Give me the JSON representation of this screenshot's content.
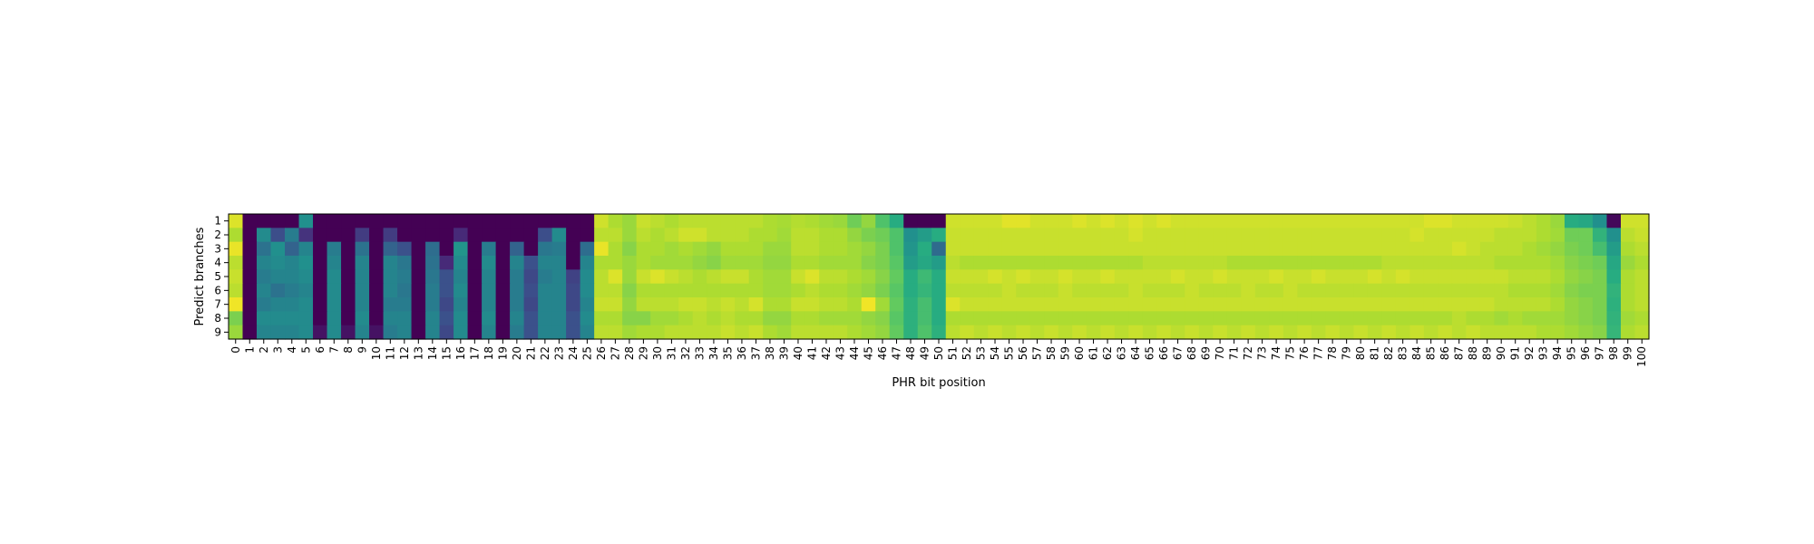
{
  "chart_data": {
    "type": "heatmap",
    "title": "",
    "xlabel": "PHR bit position",
    "ylabel": "Predict branches",
    "x_ticks": [
      0,
      1,
      2,
      3,
      4,
      5,
      6,
      7,
      8,
      9,
      10,
      11,
      12,
      13,
      14,
      15,
      16,
      17,
      18,
      19,
      20,
      21,
      22,
      23,
      24,
      25,
      26,
      27,
      28,
      29,
      30,
      31,
      32,
      33,
      34,
      35,
      36,
      37,
      38,
      39,
      40,
      41,
      42,
      43,
      44,
      45,
      46,
      47,
      48,
      49,
      50,
      51,
      52,
      53,
      54,
      55,
      56,
      57,
      58,
      59,
      60,
      61,
      62,
      63,
      64,
      65,
      66,
      67,
      68,
      69,
      70,
      71,
      72,
      73,
      74,
      75,
      76,
      77,
      78,
      79,
      80,
      81,
      82,
      83,
      84,
      85,
      86,
      87,
      88,
      89,
      90,
      91,
      92,
      93,
      94,
      95,
      96,
      97,
      98,
      99,
      100
    ],
    "y_ticks": [
      1,
      2,
      3,
      4,
      5,
      6,
      7,
      8,
      9
    ],
    "value_range": [
      0,
      1
    ],
    "colormap": "viridis",
    "grid": false,
    "rows": [
      [
        0.95,
        0.0,
        0.0,
        0.0,
        0.0,
        0.5,
        0.0,
        0.0,
        0.0,
        0.0,
        0.0,
        0.0,
        0.0,
        0.0,
        0.0,
        0.0,
        0.0,
        0.0,
        0.0,
        0.0,
        0.0,
        0.0,
        0.0,
        0.0,
        0.0,
        0.0,
        0.93,
        0.88,
        0.85,
        0.92,
        0.9,
        0.88,
        0.9,
        0.9,
        0.9,
        0.9,
        0.9,
        0.9,
        0.88,
        0.87,
        0.89,
        0.88,
        0.86,
        0.85,
        0.78,
        0.84,
        0.72,
        0.62,
        0.0,
        0.0,
        0.0,
        0.93,
        0.93,
        0.93,
        0.93,
        0.96,
        0.96,
        0.93,
        0.93,
        0.93,
        0.95,
        0.93,
        0.95,
        0.93,
        0.95,
        0.93,
        0.95,
        0.93,
        0.93,
        0.93,
        0.93,
        0.93,
        0.93,
        0.93,
        0.93,
        0.93,
        0.93,
        0.93,
        0.93,
        0.93,
        0.93,
        0.93,
        0.93,
        0.93,
        0.93,
        0.95,
        0.95,
        0.93,
        0.93,
        0.93,
        0.93,
        0.92,
        0.9,
        0.88,
        0.85,
        0.62,
        0.6,
        0.5,
        0.02,
        0.93,
        0.93
      ],
      [
        0.88,
        0.0,
        0.48,
        0.24,
        0.42,
        0.15,
        0.0,
        0.0,
        0.0,
        0.18,
        0.0,
        0.18,
        0.0,
        0.0,
        0.0,
        0.0,
        0.12,
        0.0,
        0.0,
        0.0,
        0.0,
        0.0,
        0.24,
        0.48,
        0.0,
        0.0,
        0.9,
        0.9,
        0.85,
        0.9,
        0.88,
        0.9,
        0.93,
        0.93,
        0.9,
        0.9,
        0.9,
        0.88,
        0.88,
        0.86,
        0.9,
        0.9,
        0.88,
        0.88,
        0.84,
        0.8,
        0.78,
        0.72,
        0.5,
        0.55,
        0.62,
        0.92,
        0.92,
        0.92,
        0.92,
        0.92,
        0.92,
        0.92,
        0.92,
        0.92,
        0.92,
        0.92,
        0.92,
        0.92,
        0.94,
        0.92,
        0.92,
        0.92,
        0.92,
        0.92,
        0.92,
        0.92,
        0.92,
        0.92,
        0.92,
        0.92,
        0.92,
        0.92,
        0.92,
        0.92,
        0.92,
        0.92,
        0.92,
        0.92,
        0.94,
        0.92,
        0.92,
        0.92,
        0.92,
        0.92,
        0.9,
        0.9,
        0.9,
        0.88,
        0.86,
        0.78,
        0.78,
        0.65,
        0.5,
        0.9,
        0.92
      ],
      [
        0.97,
        0.0,
        0.38,
        0.5,
        0.32,
        0.45,
        0.0,
        0.42,
        0.0,
        0.38,
        0.0,
        0.32,
        0.25,
        0.0,
        0.36,
        0.0,
        0.52,
        0.0,
        0.42,
        0.0,
        0.32,
        0.0,
        0.4,
        0.42,
        0.0,
        0.36,
        0.97,
        0.88,
        0.82,
        0.88,
        0.88,
        0.86,
        0.88,
        0.86,
        0.84,
        0.88,
        0.88,
        0.88,
        0.85,
        0.85,
        0.9,
        0.9,
        0.88,
        0.88,
        0.86,
        0.84,
        0.8,
        0.72,
        0.52,
        0.62,
        0.35,
        0.92,
        0.92,
        0.92,
        0.92,
        0.92,
        0.92,
        0.92,
        0.92,
        0.92,
        0.92,
        0.92,
        0.92,
        0.92,
        0.92,
        0.92,
        0.92,
        0.92,
        0.92,
        0.92,
        0.92,
        0.92,
        0.92,
        0.92,
        0.92,
        0.92,
        0.92,
        0.92,
        0.92,
        0.92,
        0.92,
        0.92,
        0.92,
        0.92,
        0.92,
        0.92,
        0.92,
        0.94,
        0.92,
        0.9,
        0.9,
        0.9,
        0.88,
        0.86,
        0.84,
        0.8,
        0.78,
        0.7,
        0.55,
        0.88,
        0.9
      ],
      [
        0.9,
        0.0,
        0.45,
        0.48,
        0.45,
        0.5,
        0.0,
        0.45,
        0.0,
        0.45,
        0.0,
        0.45,
        0.4,
        0.0,
        0.38,
        0.12,
        0.48,
        0.0,
        0.48,
        0.0,
        0.45,
        0.25,
        0.45,
        0.45,
        0.0,
        0.45,
        0.88,
        0.88,
        0.85,
        0.88,
        0.86,
        0.86,
        0.86,
        0.84,
        0.82,
        0.86,
        0.86,
        0.86,
        0.84,
        0.84,
        0.88,
        0.88,
        0.86,
        0.86,
        0.86,
        0.82,
        0.8,
        0.74,
        0.55,
        0.6,
        0.55,
        0.9,
        0.88,
        0.88,
        0.88,
        0.88,
        0.88,
        0.88,
        0.88,
        0.88,
        0.88,
        0.88,
        0.88,
        0.88,
        0.88,
        0.9,
        0.9,
        0.9,
        0.9,
        0.9,
        0.9,
        0.88,
        0.88,
        0.88,
        0.88,
        0.88,
        0.88,
        0.88,
        0.88,
        0.88,
        0.88,
        0.88,
        0.9,
        0.9,
        0.9,
        0.9,
        0.9,
        0.9,
        0.9,
        0.9,
        0.88,
        0.88,
        0.88,
        0.88,
        0.86,
        0.82,
        0.8,
        0.78,
        0.6,
        0.85,
        0.88
      ],
      [
        0.92,
        0.0,
        0.42,
        0.45,
        0.45,
        0.48,
        0.0,
        0.48,
        0.0,
        0.45,
        0.0,
        0.45,
        0.42,
        0.0,
        0.4,
        0.25,
        0.45,
        0.0,
        0.45,
        0.0,
        0.42,
        0.22,
        0.42,
        0.45,
        0.2,
        0.48,
        0.9,
        0.95,
        0.85,
        0.92,
        0.95,
        0.92,
        0.9,
        0.88,
        0.9,
        0.92,
        0.92,
        0.88,
        0.86,
        0.86,
        0.92,
        0.95,
        0.9,
        0.9,
        0.88,
        0.86,
        0.82,
        0.76,
        0.62,
        0.68,
        0.62,
        0.92,
        0.92,
        0.92,
        0.94,
        0.92,
        0.94,
        0.92,
        0.92,
        0.94,
        0.92,
        0.92,
        0.94,
        0.92,
        0.92,
        0.92,
        0.92,
        0.94,
        0.92,
        0.92,
        0.94,
        0.92,
        0.92,
        0.92,
        0.94,
        0.92,
        0.92,
        0.94,
        0.92,
        0.92,
        0.92,
        0.94,
        0.92,
        0.94,
        0.92,
        0.92,
        0.92,
        0.92,
        0.92,
        0.92,
        0.92,
        0.9,
        0.9,
        0.9,
        0.88,
        0.84,
        0.82,
        0.8,
        0.62,
        0.88,
        0.9
      ],
      [
        0.9,
        0.0,
        0.45,
        0.38,
        0.42,
        0.45,
        0.0,
        0.48,
        0.0,
        0.45,
        0.0,
        0.45,
        0.4,
        0.0,
        0.42,
        0.25,
        0.48,
        0.0,
        0.45,
        0.0,
        0.42,
        0.24,
        0.45,
        0.45,
        0.22,
        0.48,
        0.9,
        0.9,
        0.82,
        0.88,
        0.88,
        0.88,
        0.88,
        0.88,
        0.88,
        0.88,
        0.88,
        0.88,
        0.86,
        0.86,
        0.88,
        0.9,
        0.88,
        0.88,
        0.86,
        0.84,
        0.8,
        0.74,
        0.62,
        0.66,
        0.62,
        0.9,
        0.9,
        0.9,
        0.9,
        0.92,
        0.9,
        0.9,
        0.9,
        0.92,
        0.9,
        0.9,
        0.9,
        0.9,
        0.92,
        0.9,
        0.9,
        0.9,
        0.92,
        0.9,
        0.9,
        0.9,
        0.92,
        0.9,
        0.9,
        0.92,
        0.9,
        0.9,
        0.9,
        0.9,
        0.9,
        0.9,
        0.9,
        0.9,
        0.9,
        0.9,
        0.9,
        0.9,
        0.9,
        0.9,
        0.9,
        0.88,
        0.88,
        0.88,
        0.86,
        0.82,
        0.8,
        0.8,
        0.65,
        0.88,
        0.9
      ],
      [
        0.98,
        0.0,
        0.42,
        0.45,
        0.45,
        0.48,
        0.0,
        0.48,
        0.0,
        0.45,
        0.0,
        0.42,
        0.42,
        0.0,
        0.42,
        0.22,
        0.45,
        0.0,
        0.45,
        0.0,
        0.42,
        0.22,
        0.45,
        0.45,
        0.22,
        0.45,
        0.92,
        0.92,
        0.84,
        0.9,
        0.9,
        0.9,
        0.92,
        0.92,
        0.9,
        0.92,
        0.9,
        0.94,
        0.88,
        0.88,
        0.92,
        0.92,
        0.9,
        0.9,
        0.88,
        0.98,
        0.86,
        0.76,
        0.64,
        0.7,
        0.62,
        0.95,
        0.92,
        0.92,
        0.92,
        0.92,
        0.92,
        0.92,
        0.92,
        0.92,
        0.92,
        0.92,
        0.92,
        0.92,
        0.92,
        0.92,
        0.92,
        0.92,
        0.92,
        0.92,
        0.92,
        0.92,
        0.92,
        0.92,
        0.92,
        0.92,
        0.92,
        0.92,
        0.92,
        0.92,
        0.92,
        0.92,
        0.92,
        0.92,
        0.92,
        0.92,
        0.92,
        0.92,
        0.92,
        0.92,
        0.9,
        0.9,
        0.9,
        0.9,
        0.88,
        0.84,
        0.82,
        0.8,
        0.64,
        0.88,
        0.9
      ],
      [
        0.8,
        0.0,
        0.48,
        0.48,
        0.48,
        0.48,
        0.0,
        0.48,
        0.0,
        0.48,
        0.0,
        0.45,
        0.45,
        0.0,
        0.45,
        0.25,
        0.48,
        0.0,
        0.48,
        0.0,
        0.45,
        0.25,
        0.45,
        0.45,
        0.25,
        0.48,
        0.88,
        0.88,
        0.82,
        0.82,
        0.86,
        0.86,
        0.88,
        0.9,
        0.88,
        0.9,
        0.88,
        0.88,
        0.84,
        0.84,
        0.88,
        0.88,
        0.86,
        0.86,
        0.86,
        0.84,
        0.82,
        0.74,
        0.64,
        0.7,
        0.62,
        0.88,
        0.88,
        0.88,
        0.88,
        0.88,
        0.88,
        0.88,
        0.88,
        0.88,
        0.88,
        0.88,
        0.88,
        0.88,
        0.88,
        0.88,
        0.88,
        0.88,
        0.88,
        0.88,
        0.88,
        0.88,
        0.88,
        0.88,
        0.88,
        0.88,
        0.88,
        0.88,
        0.88,
        0.88,
        0.88,
        0.88,
        0.88,
        0.88,
        0.88,
        0.88,
        0.88,
        0.9,
        0.88,
        0.88,
        0.86,
        0.88,
        0.86,
        0.86,
        0.86,
        0.84,
        0.82,
        0.8,
        0.65,
        0.86,
        0.88
      ],
      [
        0.85,
        0.0,
        0.45,
        0.45,
        0.45,
        0.48,
        0.05,
        0.48,
        0.05,
        0.45,
        0.05,
        0.42,
        0.45,
        0.0,
        0.45,
        0.22,
        0.48,
        0.0,
        0.45,
        0.0,
        0.42,
        0.25,
        0.45,
        0.45,
        0.25,
        0.45,
        0.9,
        0.9,
        0.86,
        0.88,
        0.88,
        0.9,
        0.9,
        0.9,
        0.9,
        0.92,
        0.9,
        0.92,
        0.88,
        0.86,
        0.9,
        0.9,
        0.9,
        0.9,
        0.88,
        0.86,
        0.84,
        0.76,
        0.64,
        0.72,
        0.64,
        0.9,
        0.92,
        0.9,
        0.92,
        0.9,
        0.92,
        0.9,
        0.92,
        0.9,
        0.92,
        0.9,
        0.92,
        0.9,
        0.92,
        0.9,
        0.92,
        0.9,
        0.92,
        0.9,
        0.92,
        0.9,
        0.92,
        0.9,
        0.92,
        0.9,
        0.92,
        0.9,
        0.92,
        0.9,
        0.92,
        0.9,
        0.92,
        0.9,
        0.92,
        0.9,
        0.92,
        0.9,
        0.92,
        0.9,
        0.9,
        0.9,
        0.9,
        0.88,
        0.88,
        0.86,
        0.84,
        0.82,
        0.66,
        0.88,
        0.9
      ]
    ]
  }
}
